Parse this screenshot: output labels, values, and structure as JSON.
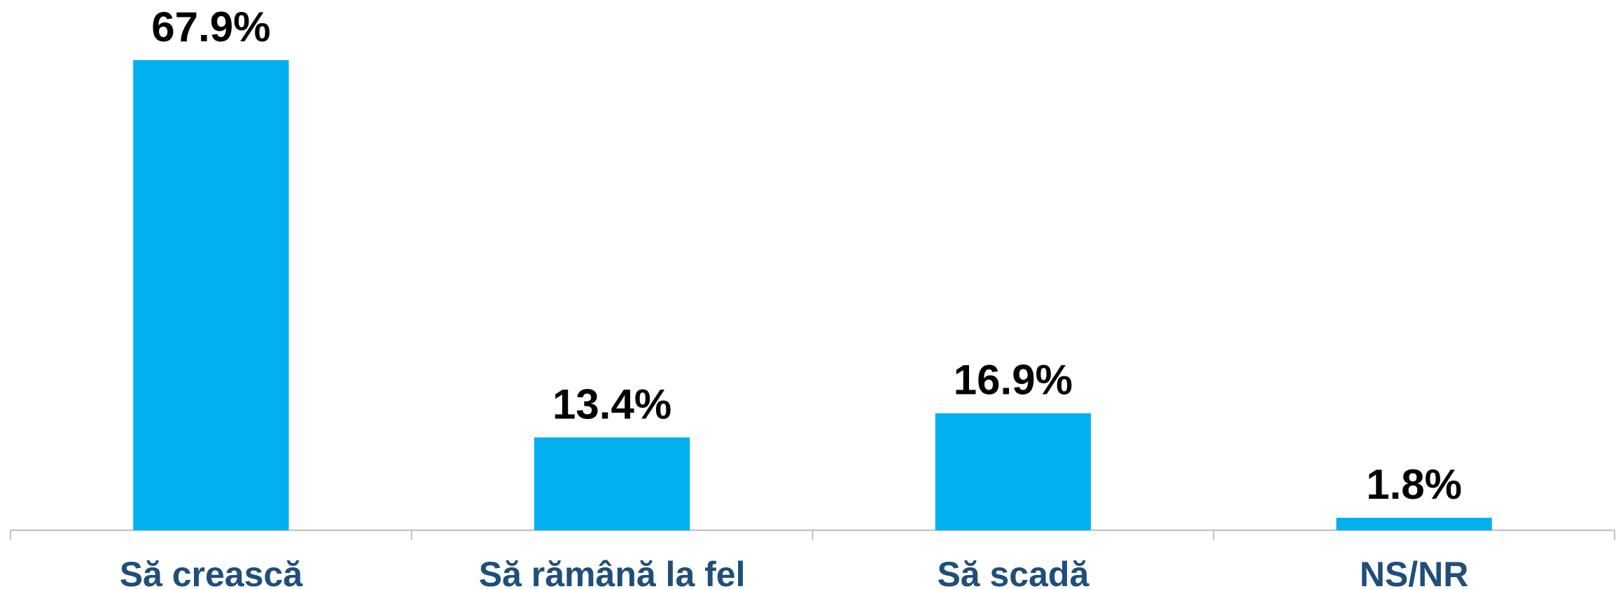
{
  "chart_data": {
    "type": "bar",
    "categories": [
      "Să crească",
      "Să rămână la fel",
      "Să scadă",
      "NS/NR"
    ],
    "values": [
      67.9,
      13.4,
      16.9,
      1.8
    ],
    "value_labels": [
      "67.9%",
      "13.4%",
      "16.9%",
      "1.8%"
    ],
    "color": "#00b0f0"
  }
}
